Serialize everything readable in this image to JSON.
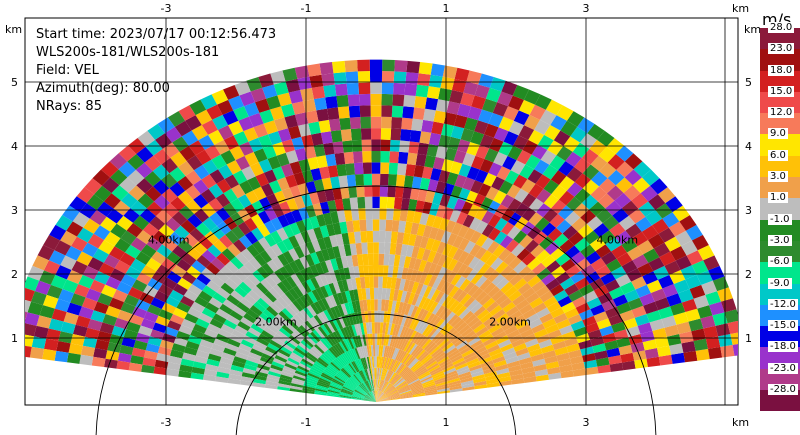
{
  "header": {
    "start_time": "Start time: 2023/07/17 00:12:56.473",
    "site": "WLS200s-181/WLS200s-181",
    "field": "Field: VEL",
    "azimuth": "Azimuth(deg): 80.00",
    "nrays": "NRays: 85"
  },
  "axes": {
    "unit": "km",
    "x_ticks": [
      "-3",
      "-1",
      "1",
      "3"
    ],
    "y_ticks": [
      "1",
      "2",
      "3",
      "4",
      "5"
    ],
    "range_rings": [
      "2.00km",
      "4.00km"
    ]
  },
  "colorbar": {
    "unit": "m/s",
    "levels": [
      {
        "label": "28.0",
        "color": "#8b1a3a"
      },
      {
        "label": "23.0",
        "color": "#a01010"
      },
      {
        "label": "18.0",
        "color": "#d32020"
      },
      {
        "label": "15.0",
        "color": "#ef4a4a"
      },
      {
        "label": "12.0",
        "color": "#f77a5a"
      },
      {
        "label": "9.0",
        "color": "#ffe600"
      },
      {
        "label": "6.0",
        "color": "#ffc107"
      },
      {
        "label": "3.0",
        "color": "#f0a04a"
      },
      {
        "label": "1.0",
        "color": "#bdbdbd"
      },
      {
        "label": "-1.0",
        "color": "#228b22"
      },
      {
        "label": "-3.0",
        "color": "#2e8b2e"
      },
      {
        "label": "-6.0",
        "color": "#00e68c"
      },
      {
        "label": "-9.0",
        "color": "#00c8c8"
      },
      {
        "label": "-12.0",
        "color": "#1e90ff"
      },
      {
        "label": "-15.0",
        "color": "#0000e6"
      },
      {
        "label": "-18.0",
        "color": "#9932cc"
      },
      {
        "label": "-23.0",
        "color": "#b03a8a"
      },
      {
        "label": "-28.0",
        "color": "#7a1040"
      }
    ]
  }
}
